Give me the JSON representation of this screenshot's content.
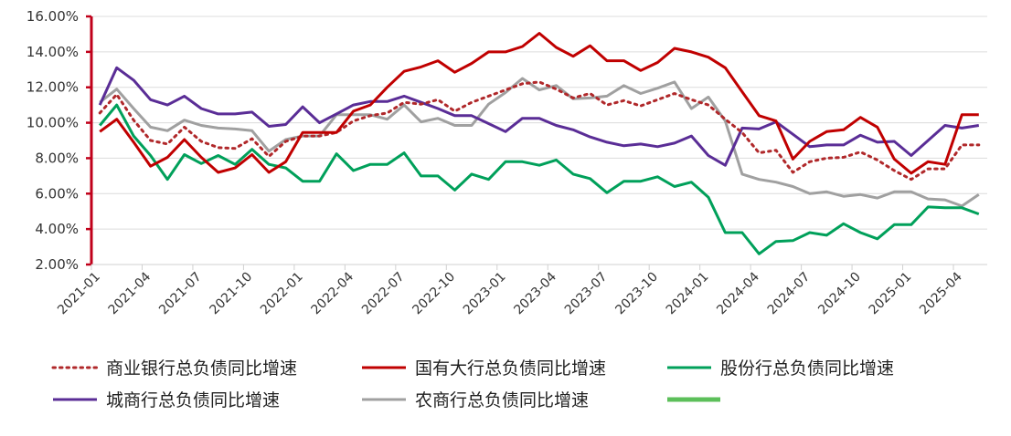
{
  "chart_data": {
    "type": "line",
    "title": "",
    "xlabel": "",
    "ylabel": "",
    "ylim": [
      2,
      16
    ],
    "y_ticks": [
      "2.00%",
      "4.00%",
      "6.00%",
      "8.00%",
      "10.00%",
      "12.00%",
      "14.00%",
      "16.00%"
    ],
    "y_tick_values": [
      2,
      4,
      6,
      8,
      10,
      12,
      14,
      16
    ],
    "x_start": "2021-01",
    "x_count": 53,
    "x_tick_labels": [
      "2021-01",
      "2021-04",
      "2021-07",
      "2021-10",
      "2022-01",
      "2022-04",
      "2022-07",
      "2022-10",
      "2023-01",
      "2023-04",
      "2023-07",
      "2023-10",
      "2024-01",
      "2024-04",
      "2024-07",
      "2024-10",
      "2025-01",
      "2025-04"
    ],
    "grid": "horizontal",
    "legend_position": "bottom",
    "series": [
      {
        "name": "商业银行总负债同比增速",
        "color": "#b0282a",
        "style": "dotted",
        "values": [
          10.55,
          11.6,
          10.15,
          9.0,
          8.8,
          9.75,
          8.95,
          8.6,
          8.55,
          9.1,
          8.1,
          8.95,
          9.25,
          9.25,
          9.45,
          10.1,
          10.4,
          10.55,
          11.15,
          11.05,
          11.3,
          10.65,
          11.15,
          11.5,
          11.85,
          12.2,
          12.3,
          11.9,
          11.4,
          11.65,
          11.0,
          11.25,
          10.95,
          11.3,
          11.65,
          11.3,
          11.0,
          10.2,
          9.45,
          8.3,
          8.45,
          7.2,
          7.8,
          8.0,
          8.05,
          8.35,
          7.9,
          7.3,
          6.8,
          7.4,
          7.4,
          8.75,
          8.75
        ]
      },
      {
        "name": "国有大行总负债同比增速",
        "color": "#c00000",
        "style": "solid",
        "values": [
          9.5,
          10.2,
          8.9,
          7.55,
          8.05,
          9.05,
          8.05,
          7.2,
          7.45,
          8.2,
          7.2,
          7.8,
          9.45,
          9.45,
          9.45,
          10.65,
          11.0,
          12.0,
          12.9,
          13.15,
          13.5,
          12.85,
          13.35,
          14.0,
          14.0,
          14.3,
          15.05,
          14.25,
          13.75,
          14.35,
          13.5,
          13.5,
          12.95,
          13.4,
          14.2,
          14.0,
          13.7,
          13.1,
          11.75,
          10.4,
          10.1,
          7.95,
          8.95,
          9.5,
          9.6,
          10.3,
          9.75,
          7.95,
          7.15,
          7.8,
          7.65,
          10.45,
          10.45
        ]
      },
      {
        "name": "股份行总负债同比增速",
        "color": "#00a05a",
        "style": "solid",
        "values": [
          9.85,
          11.0,
          9.25,
          8.15,
          6.8,
          8.2,
          7.7,
          8.15,
          7.65,
          8.5,
          7.65,
          7.45,
          6.7,
          6.7,
          8.25,
          7.3,
          7.65,
          7.65,
          8.3,
          7.0,
          7.0,
          6.2,
          7.1,
          6.8,
          7.8,
          7.8,
          7.6,
          7.9,
          7.1,
          6.85,
          6.05,
          6.7,
          6.7,
          6.95,
          6.4,
          6.65,
          5.8,
          3.8,
          3.8,
          2.6,
          3.3,
          3.35,
          3.8,
          3.65,
          4.3,
          3.8,
          3.45,
          4.25,
          4.25,
          5.25,
          5.2,
          5.2,
          4.85
        ]
      },
      {
        "name": "城商行总负债同比增速",
        "color": "#5a2d96",
        "style": "solid",
        "values": [
          11.0,
          13.1,
          12.4,
          11.3,
          11.0,
          11.5,
          10.8,
          10.5,
          10.5,
          10.6,
          9.8,
          9.9,
          10.9,
          10.0,
          10.5,
          11.0,
          11.2,
          11.2,
          11.5,
          11.15,
          10.8,
          10.4,
          10.4,
          9.95,
          9.5,
          10.25,
          10.25,
          9.85,
          9.6,
          9.2,
          8.9,
          8.7,
          8.8,
          8.65,
          8.85,
          9.25,
          8.15,
          7.6,
          9.7,
          9.65,
          10.05,
          9.35,
          8.65,
          8.75,
          8.75,
          9.3,
          8.9,
          8.95,
          8.15,
          9.0,
          9.85,
          9.7,
          9.85
        ]
      },
      {
        "name": "农商行总负债同比增速",
        "color": "#a0a0a0",
        "style": "solid",
        "values": [
          11.15,
          11.9,
          10.8,
          9.75,
          9.55,
          10.15,
          9.85,
          9.7,
          9.65,
          9.55,
          8.4,
          9.05,
          9.25,
          9.25,
          10.45,
          10.45,
          10.45,
          10.2,
          11.0,
          10.05,
          10.25,
          9.85,
          9.85,
          11.05,
          11.7,
          12.5,
          11.85,
          12.1,
          11.35,
          11.4,
          11.5,
          12.1,
          11.65,
          11.95,
          12.3,
          10.8,
          11.45,
          10.1,
          7.1,
          6.8,
          6.65,
          6.4,
          6.0,
          6.1,
          5.85,
          5.95,
          5.75,
          6.1,
          6.1,
          5.7,
          5.65,
          5.3,
          5.95
        ]
      }
    ],
    "extra_legend_entry": {
      "name": "",
      "color": "#5cbf5a",
      "style": "thick"
    }
  }
}
